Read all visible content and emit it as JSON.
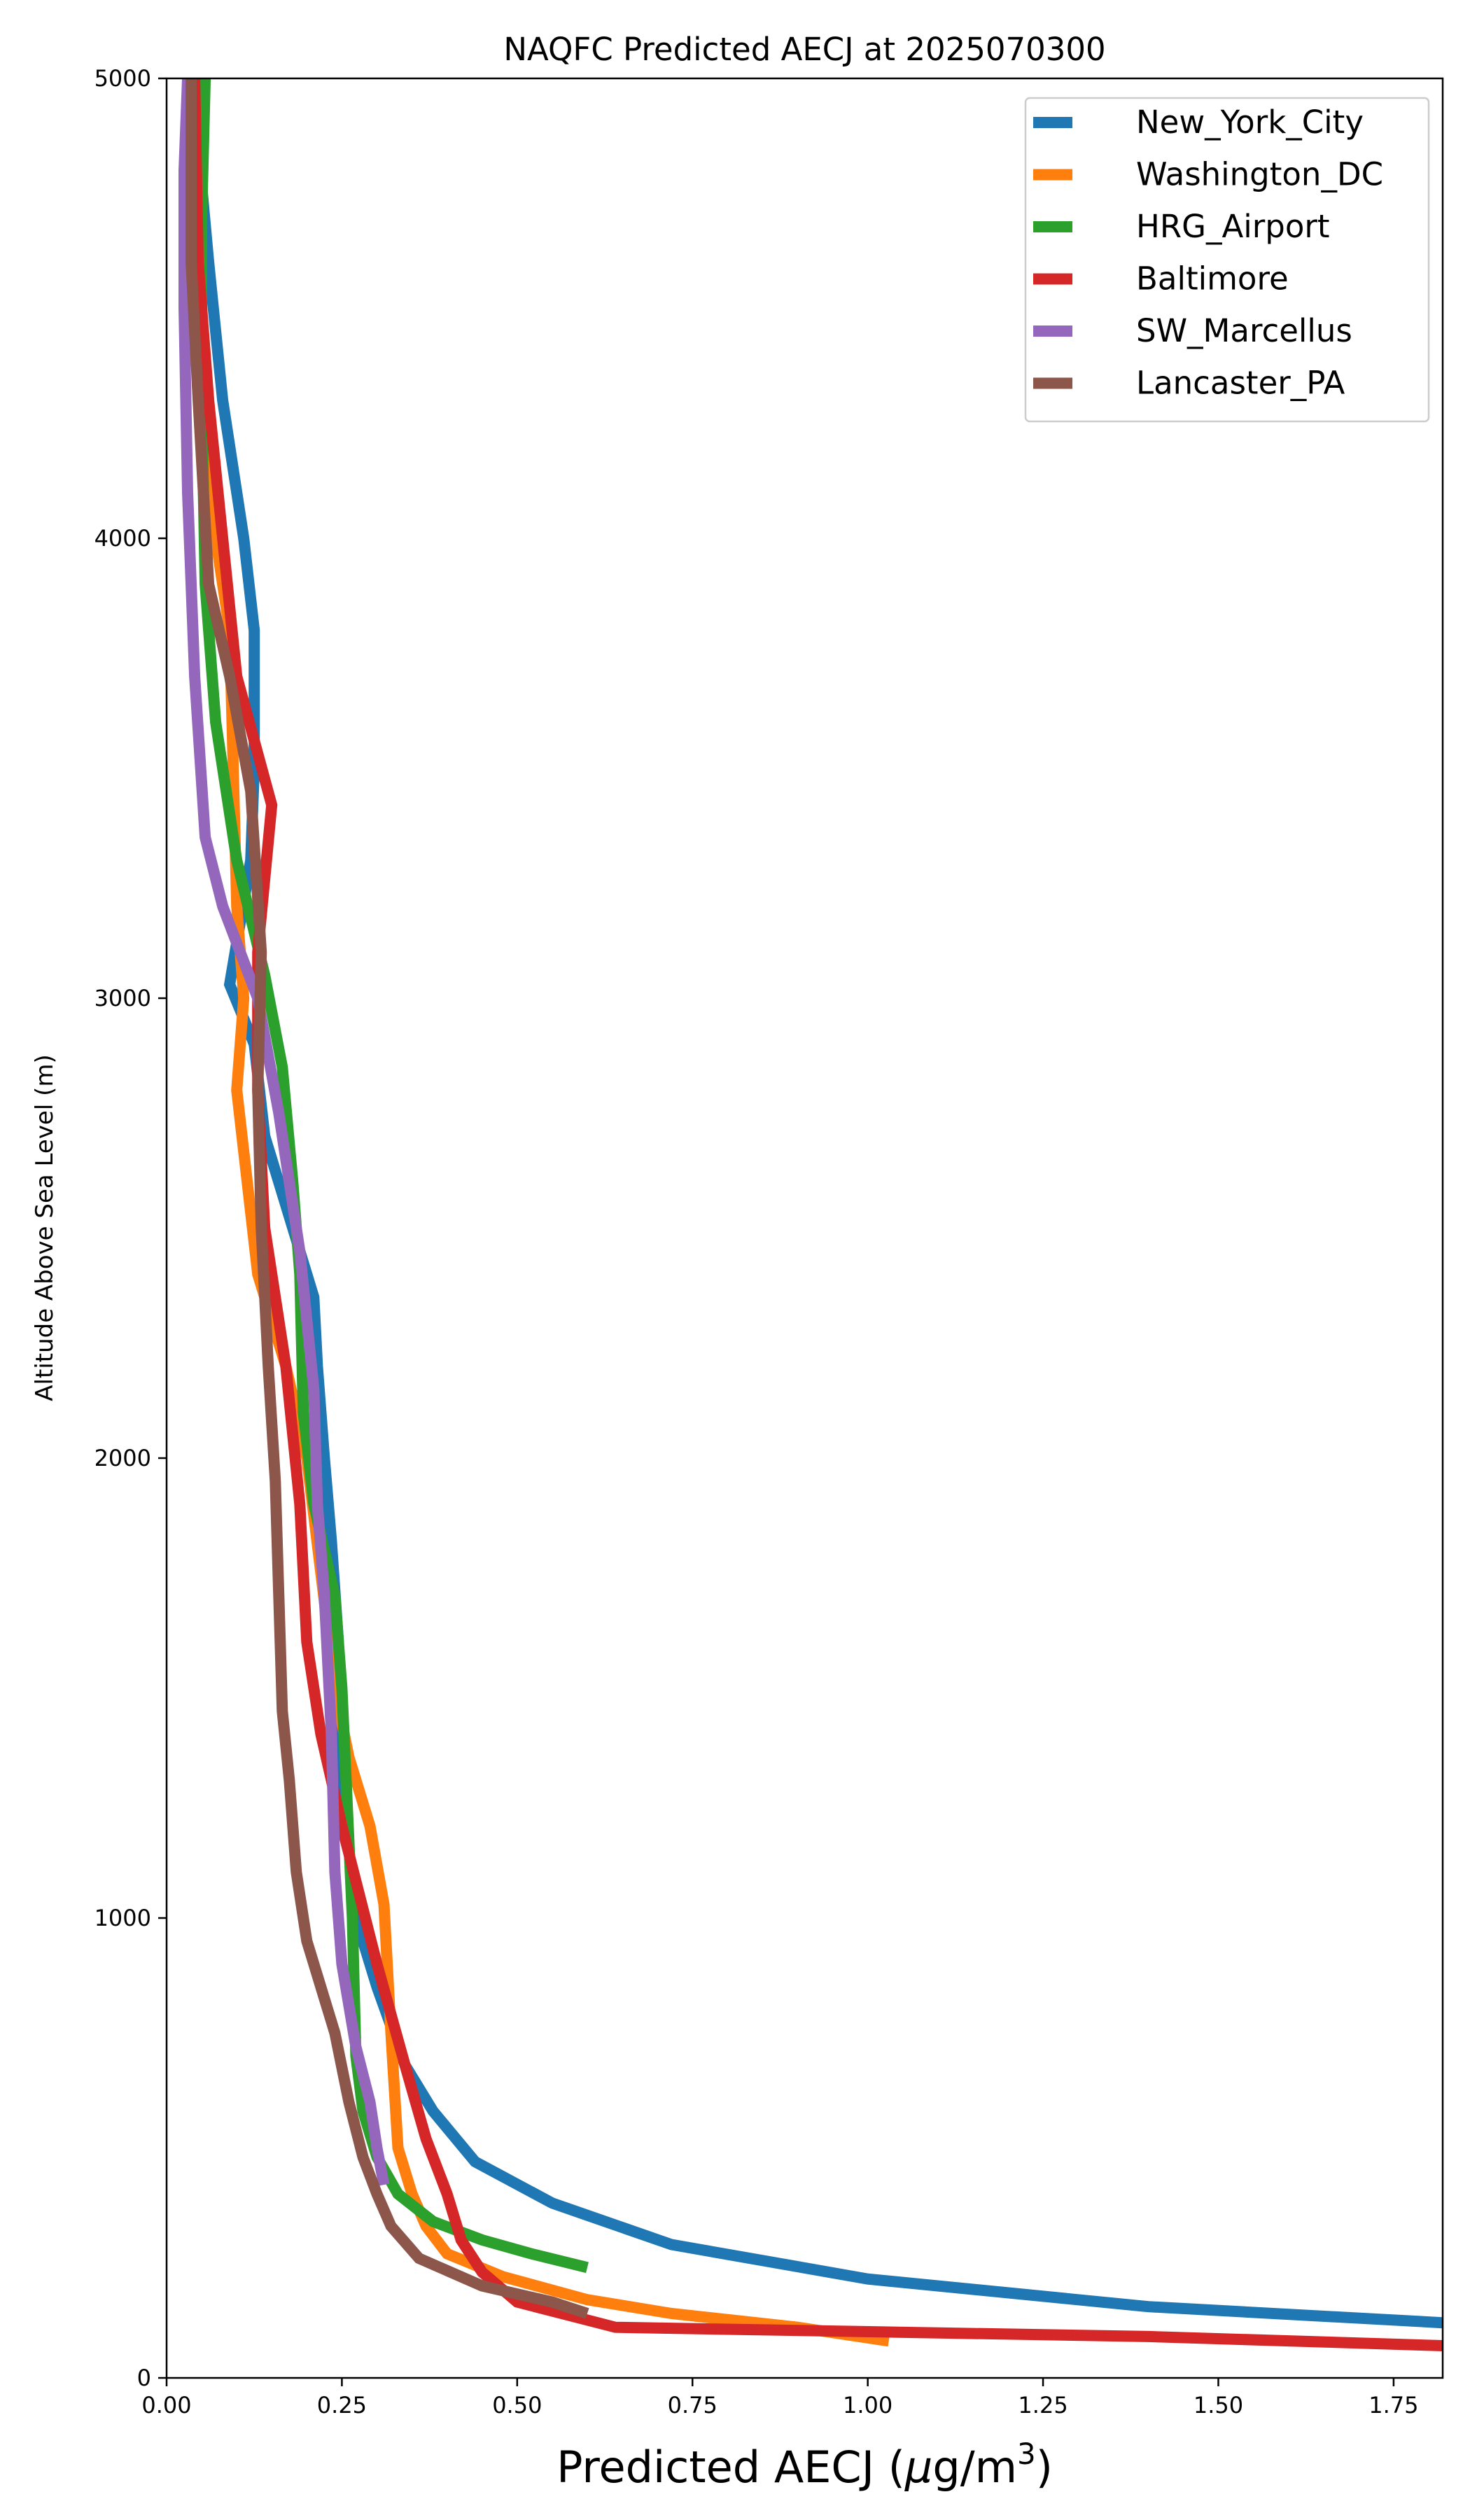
{
  "chart_data": {
    "type": "line",
    "title": "NAQFC Predicted AECJ at 2025070300",
    "xlabel_main": "Predicted AECJ (",
    "xlabel_mu": "μ",
    "xlabel_unit": "g/m",
    "xlabel_sup": "3",
    "xlabel_close": ")",
    "ylabel": "Altitude Above Sea Level (m)",
    "xlim": [
      0,
      1.82
    ],
    "ylim": [
      0,
      5000
    ],
    "xticks": [
      0,
      0.25,
      0.5,
      0.75,
      1.0,
      1.25,
      1.5,
      1.75
    ],
    "xtick_labels": [
      "0.00",
      "0.25",
      "0.50",
      "0.75",
      "1.00",
      "1.25",
      "1.50",
      "1.75"
    ],
    "yticks": [
      0,
      1000,
      2000,
      3000,
      4000,
      5000
    ],
    "ytick_labels": [
      "0",
      "1000",
      "2000",
      "3000",
      "4000",
      "5000"
    ],
    "grid": false,
    "legend_position": "top-right",
    "series": [
      {
        "name": "New_York_City",
        "color": "#1f77b4",
        "points": [
          [
            1.82,
            120
          ],
          [
            1.4,
            155
          ],
          [
            1.0,
            215
          ],
          [
            0.72,
            290
          ],
          [
            0.55,
            380
          ],
          [
            0.44,
            470
          ],
          [
            0.38,
            580
          ],
          [
            0.34,
            680
          ],
          [
            0.3,
            850
          ],
          [
            0.27,
            1000
          ],
          [
            0.25,
            1300
          ],
          [
            0.245,
            1600
          ],
          [
            0.235,
            1820
          ],
          [
            0.225,
            2000
          ],
          [
            0.215,
            2200
          ],
          [
            0.21,
            2350
          ],
          [
            0.18,
            2500
          ],
          [
            0.14,
            2700
          ],
          [
            0.125,
            2900
          ],
          [
            0.09,
            3030
          ],
          [
            0.12,
            3300
          ],
          [
            0.125,
            3500
          ],
          [
            0.125,
            3800
          ],
          [
            0.11,
            4000
          ],
          [
            0.08,
            4300
          ],
          [
            0.06,
            4600
          ],
          [
            0.045,
            4850
          ],
          [
            0.04,
            5000
          ]
        ]
      },
      {
        "name": "Washington_DC",
        "color": "#ff7f0e",
        "points": [
          [
            1.03,
            80
          ],
          [
            0.9,
            110
          ],
          [
            0.72,
            140
          ],
          [
            0.6,
            170
          ],
          [
            0.48,
            220
          ],
          [
            0.4,
            270
          ],
          [
            0.37,
            330
          ],
          [
            0.35,
            400
          ],
          [
            0.33,
            500
          ],
          [
            0.32,
            750
          ],
          [
            0.31,
            1030
          ],
          [
            0.29,
            1200
          ],
          [
            0.26,
            1350
          ],
          [
            0.24,
            1500
          ],
          [
            0.22,
            1750
          ],
          [
            0.2,
            2000
          ],
          [
            0.17,
            2200
          ],
          [
            0.13,
            2400
          ],
          [
            0.115,
            2600
          ],
          [
            0.1,
            2800
          ],
          [
            0.11,
            3000
          ],
          [
            0.1,
            3200
          ],
          [
            0.095,
            3500
          ],
          [
            0.09,
            3800
          ],
          [
            0.07,
            4000
          ],
          [
            0.05,
            4300
          ],
          [
            0.03,
            4600
          ],
          [
            0.03,
            5000
          ]
        ]
      },
      {
        "name": "HRG_Airport",
        "color": "#2ca02c",
        "points": [
          [
            0.6,
            240
          ],
          [
            0.52,
            270
          ],
          [
            0.45,
            300
          ],
          [
            0.38,
            340
          ],
          [
            0.33,
            400
          ],
          [
            0.3,
            480
          ],
          [
            0.28,
            580
          ],
          [
            0.27,
            700
          ],
          [
            0.265,
            1000
          ],
          [
            0.25,
            1500
          ],
          [
            0.24,
            1700
          ],
          [
            0.21,
            1900
          ],
          [
            0.195,
            2100
          ],
          [
            0.19,
            2400
          ],
          [
            0.18,
            2600
          ],
          [
            0.165,
            2850
          ],
          [
            0.14,
            3050
          ],
          [
            0.1,
            3300
          ],
          [
            0.07,
            3600
          ],
          [
            0.055,
            3900
          ],
          [
            0.05,
            4300
          ],
          [
            0.05,
            4700
          ],
          [
            0.055,
            5000
          ]
        ]
      },
      {
        "name": "Baltimore",
        "color": "#d62728",
        "points": [
          [
            1.82,
            70
          ],
          [
            1.4,
            90
          ],
          [
            0.64,
            110
          ],
          [
            0.5,
            165
          ],
          [
            0.45,
            230
          ],
          [
            0.42,
            300
          ],
          [
            0.4,
            400
          ],
          [
            0.37,
            520
          ],
          [
            0.34,
            680
          ],
          [
            0.3,
            900
          ],
          [
            0.25,
            1200
          ],
          [
            0.22,
            1400
          ],
          [
            0.2,
            1600
          ],
          [
            0.19,
            1900
          ],
          [
            0.17,
            2200
          ],
          [
            0.14,
            2500
          ],
          [
            0.13,
            2800
          ],
          [
            0.13,
            3100
          ],
          [
            0.15,
            3420
          ],
          [
            0.1,
            3700
          ],
          [
            0.08,
            4000
          ],
          [
            0.06,
            4300
          ],
          [
            0.045,
            4600
          ],
          [
            0.04,
            5000
          ]
        ]
      },
      {
        "name": "SW_Marcellus",
        "color": "#9467bd",
        "points": [
          [
            0.31,
            420
          ],
          [
            0.3,
            500
          ],
          [
            0.29,
            600
          ],
          [
            0.27,
            720
          ],
          [
            0.25,
            900
          ],
          [
            0.24,
            1100
          ],
          [
            0.235,
            1400
          ],
          [
            0.225,
            1700
          ],
          [
            0.215,
            1900
          ],
          [
            0.21,
            2150
          ],
          [
            0.19,
            2450
          ],
          [
            0.16,
            2750
          ],
          [
            0.13,
            3000
          ],
          [
            0.08,
            3200
          ],
          [
            0.055,
            3350
          ],
          [
            0.04,
            3700
          ],
          [
            0.03,
            4100
          ],
          [
            0.025,
            4500
          ],
          [
            0.025,
            4800
          ],
          [
            0.03,
            5000
          ]
        ]
      },
      {
        "name": "Lancaster_PA",
        "color": "#8c564b",
        "points": [
          [
            0.6,
            140
          ],
          [
            0.55,
            165
          ],
          [
            0.45,
            200
          ],
          [
            0.36,
            260
          ],
          [
            0.32,
            330
          ],
          [
            0.3,
            400
          ],
          [
            0.28,
            480
          ],
          [
            0.26,
            600
          ],
          [
            0.24,
            750
          ],
          [
            0.2,
            950
          ],
          [
            0.185,
            1100
          ],
          [
            0.175,
            1300
          ],
          [
            0.165,
            1450
          ],
          [
            0.16,
            1700
          ],
          [
            0.155,
            1950
          ],
          [
            0.145,
            2200
          ],
          [
            0.135,
            2500
          ],
          [
            0.13,
            2800
          ],
          [
            0.135,
            3100
          ],
          [
            0.12,
            3450
          ],
          [
            0.09,
            3700
          ],
          [
            0.06,
            3900
          ],
          [
            0.045,
            4300
          ],
          [
            0.035,
            4600
          ],
          [
            0.035,
            5000
          ]
        ]
      }
    ]
  }
}
